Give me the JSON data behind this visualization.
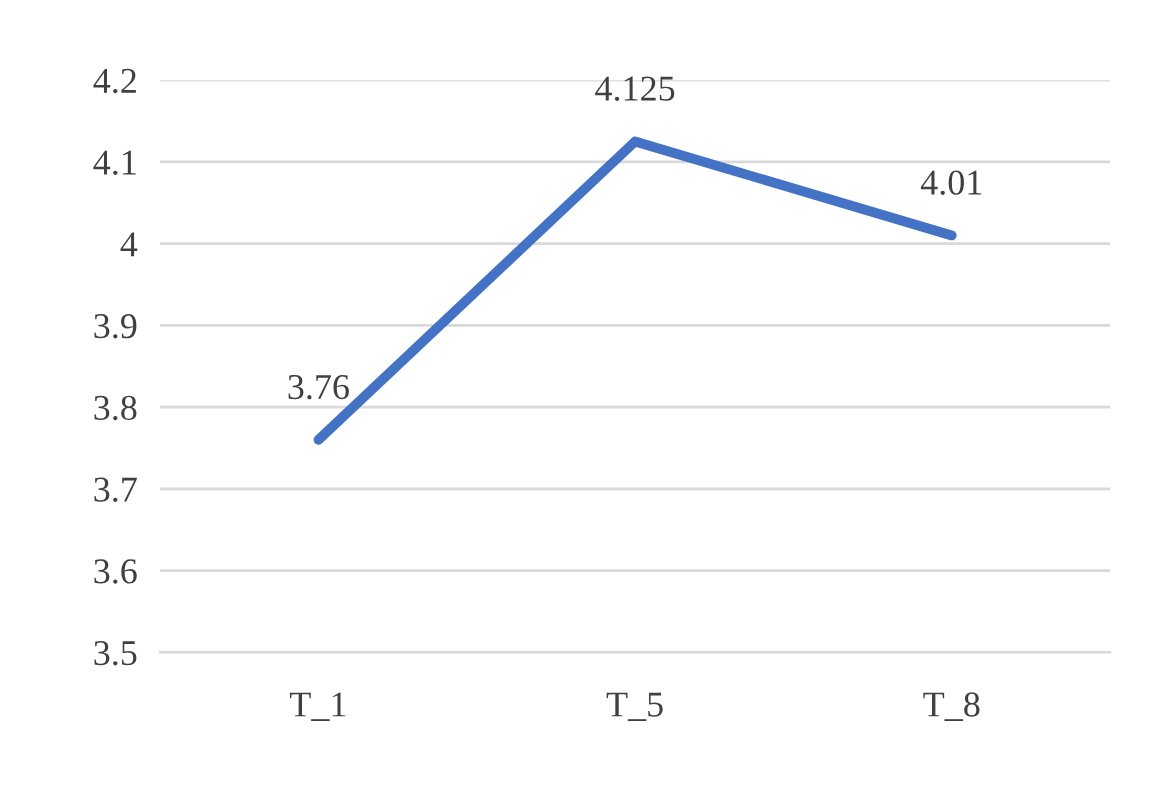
{
  "chart_data": {
    "type": "line",
    "categories": [
      "T_1",
      "T_5",
      "T_8"
    ],
    "series": [
      {
        "color": "#4472c4",
        "values": [
          3.76,
          4.125,
          4.01
        ]
      }
    ],
    "ylim": [
      3.5,
      4.2
    ],
    "yticks": [
      3.5,
      3.6,
      3.7,
      3.8,
      3.9,
      4,
      4.1,
      4.2
    ],
    "grid": "y",
    "data_labels": true,
    "marker": "none",
    "line_style": "solid"
  }
}
